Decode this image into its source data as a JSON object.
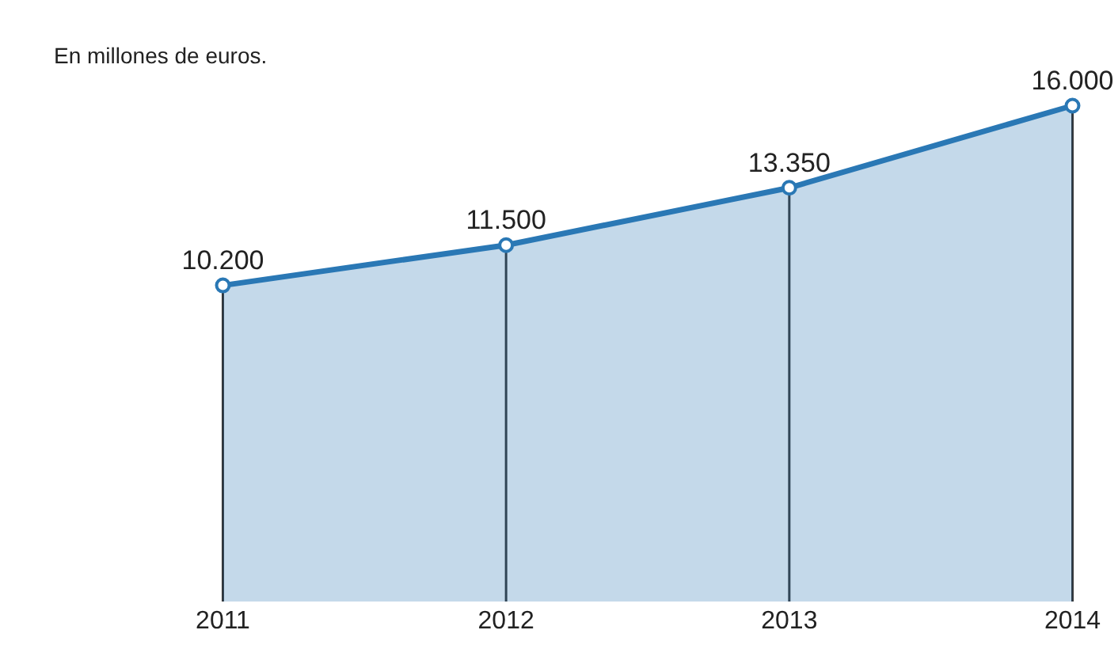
{
  "chart_data": {
    "type": "area",
    "subtitle": "En millones de euros.",
    "categories": [
      "2011",
      "2012",
      "2013",
      "2014"
    ],
    "series": [
      {
        "color": "#2a78b5",
        "values": [
          10200,
          11500,
          13350,
          16000
        ],
        "value_labels": [
          "10.200",
          "11.500",
          "13.350",
          "16.000"
        ]
      }
    ],
    "marker": "circle",
    "grid": "x"
  }
}
